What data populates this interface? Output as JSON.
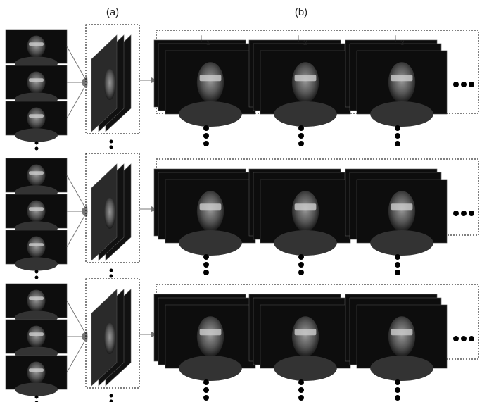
{
  "labels": {
    "a": "(a)",
    "b": "(b)"
  },
  "time_steps": [
    {
      "base": "t",
      "sub": "1"
    },
    {
      "base": "t",
      "sub": "2"
    },
    {
      "base": "t",
      "sub": "3"
    }
  ]
}
